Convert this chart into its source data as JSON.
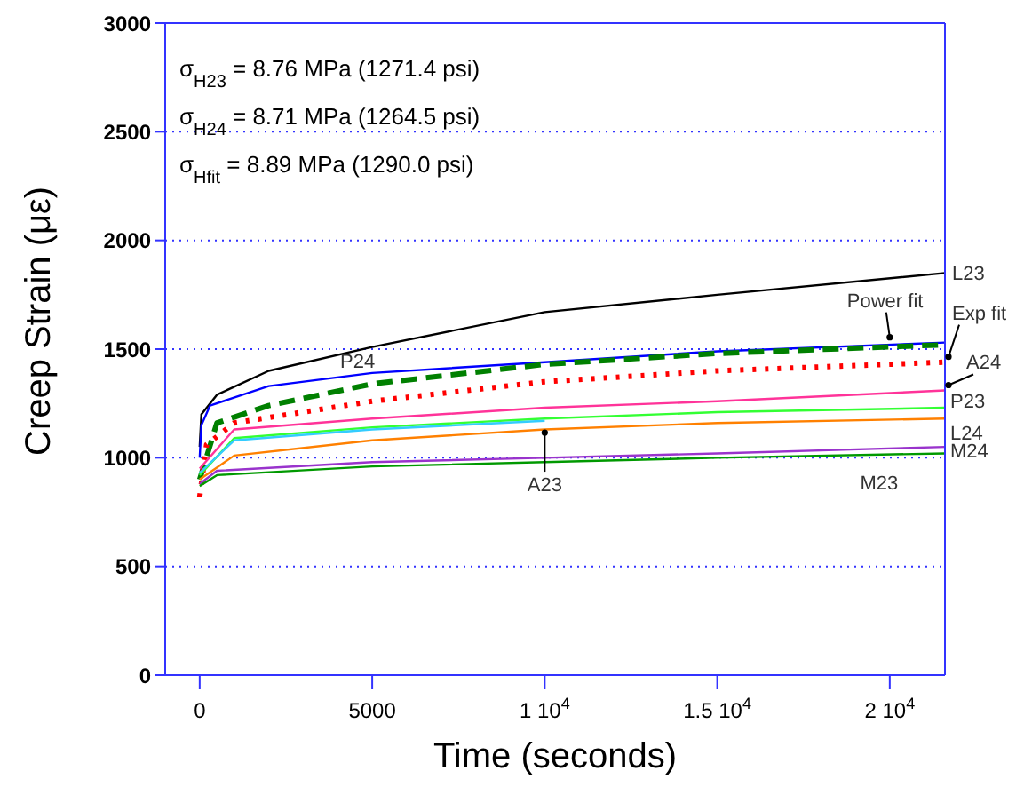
{
  "chart_data": {
    "type": "line",
    "xlabel": "Time (seconds)",
    "ylabel": "Creep Strain (με)",
    "xlim": [
      -1000,
      21600
    ],
    "ylim": [
      0,
      3000
    ],
    "xticks": [
      0,
      5000,
      {
        "value": 10000,
        "label": "1 10$^{4}$"
      },
      {
        "value": 15000,
        "label": "1.5 10$^{4}$"
      },
      {
        "value": 20000,
        "label": "2 10$^{4}$"
      }
    ],
    "yticks": [
      0,
      500,
      1000,
      1500,
      2000,
      2500,
      3000
    ],
    "grid": "y",
    "legend": false,
    "marker": "none",
    "line_style": "solid",
    "series": [
      {
        "color": "#000000",
        "x": [
          0,
          50,
          500,
          2000,
          5000,
          10000,
          15000,
          21600
        ],
        "values": [
          1050,
          1200,
          1290,
          1400,
          1510,
          1670,
          1750,
          1850
        ]
      },
      {
        "color": "#0000ff",
        "x": [
          0,
          50,
          300,
          2000,
          5000,
          10000,
          15000,
          21600
        ],
        "values": [
          1000,
          1150,
          1240,
          1330,
          1390,
          1440,
          1490,
          1530
        ]
      },
      {
        "color": "#008000",
        "line_style": "dashed",
        "x": [
          0,
          500,
          2000,
          5000,
          10000,
          15000,
          21600
        ],
        "values": [
          900,
          1160,
          1240,
          1340,
          1430,
          1480,
          1520
        ]
      },
      {
        "color": "#ff0000",
        "line_style": "dotted",
        "x": [
          0,
          200,
          1000,
          5000,
          10000,
          15000,
          21600
        ],
        "values": [
          820,
          1060,
          1160,
          1260,
          1350,
          1400,
          1440
        ]
      },
      {
        "color": "#ff3399",
        "x": [
          0,
          1000,
          5000,
          10000,
          15000,
          21600
        ],
        "values": [
          950,
          1130,
          1180,
          1230,
          1260,
          1310
        ]
      },
      {
        "color": "#33ff33",
        "x": [
          0,
          1000,
          5000,
          10000,
          15000,
          21600
        ],
        "values": [
          920,
          1090,
          1140,
          1180,
          1210,
          1230
        ]
      },
      {
        "color": "#33ccff",
        "x": [
          0,
          1000,
          5000,
          10000
        ],
        "values": [
          930,
          1080,
          1130,
          1170
        ]
      },
      {
        "color": "#ff8000",
        "x": [
          0,
          1000,
          5000,
          10000,
          15000,
          21600
        ],
        "values": [
          900,
          1010,
          1080,
          1130,
          1160,
          1180
        ]
      },
      {
        "color": "#9933cc",
        "x": [
          0,
          500,
          5000,
          10000,
          15000,
          21600
        ],
        "values": [
          880,
          940,
          980,
          1000,
          1020,
          1050
        ]
      },
      {
        "color": "#009900",
        "x": [
          0,
          500,
          5000,
          10000,
          15000,
          21600
        ],
        "values": [
          870,
          920,
          960,
          980,
          1000,
          1020
        ]
      }
    ],
    "annotations": [
      "σ$_{H23}$ = 8.76 MPa (1271.4 psi)",
      "σ$_{H24}$ = 8.71 MPa (1264.5 psi)",
      "σ$_{Hfit}$ = 8.89 MPa (1290.0 psi)",
      {
        "text": "L23",
        "x": 21600,
        "y": 1850
      },
      {
        "text": "P24",
        "x": 5000,
        "y": 1390
      },
      {
        "text": "Power fit",
        "x": 20000,
        "y": 1530
      },
      {
        "text": "Exp fit",
        "x": 21600,
        "y": 1440
      },
      {
        "text": "A24",
        "x": 21600,
        "y": 1310
      },
      {
        "text": "P23",
        "x": 21600,
        "y": 1230
      },
      {
        "text": "L24",
        "x": 21600,
        "y": 1180
      },
      {
        "text": "M24",
        "x": 21600,
        "y": 1050
      },
      {
        "text": "M23",
        "x": 20000,
        "y": 1000
      },
      {
        "text": "A23",
        "x": 10000,
        "y": 1140
      }
    ]
  }
}
